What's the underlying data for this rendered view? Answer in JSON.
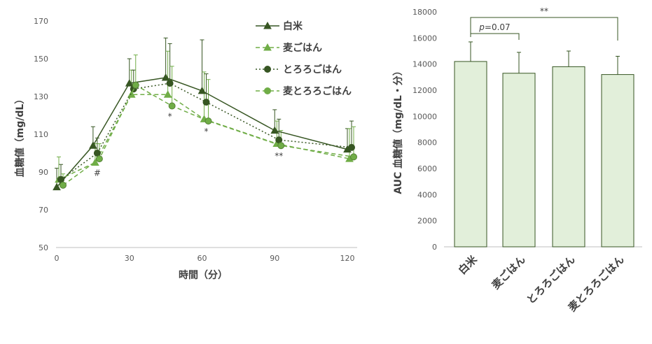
{
  "colors": {
    "dark_green": "#375623",
    "light_green": "#70AD47",
    "bar_fill": "#E2EFDA",
    "bar_stroke": "#375623",
    "axis": "#BFBFBF",
    "text": "#404040"
  },
  "chart_data": [
    {
      "type": "line",
      "xlabel": "時間（分）",
      "ylabel": "血糖値（mg/dL）",
      "xlim": [
        0,
        120
      ],
      "ylim": [
        50,
        170
      ],
      "x_ticks": [
        "0",
        "30",
        "60",
        "90",
        "120"
      ],
      "y_ticks": [
        "50",
        "70",
        "90",
        "110",
        "130",
        "150",
        "170"
      ],
      "grid": false,
      "legend_position": "top-center",
      "series": [
        {
          "name": "白米",
          "marker": "triangle",
          "line_style": "solid",
          "color": "dark_green",
          "x": [
            0,
            15,
            30,
            45,
            60,
            90,
            120
          ],
          "y": [
            82,
            104,
            137,
            140,
            133,
            112,
            102
          ],
          "err": [
            10,
            10,
            13,
            21,
            27,
            11,
            11
          ]
        },
        {
          "name": "麦ごはん",
          "marker": "triangle",
          "line_style": "dashed",
          "color": "light_green",
          "x": [
            0,
            15,
            30,
            45,
            60,
            90,
            120
          ],
          "y": [
            86,
            95,
            131,
            131,
            118,
            105,
            97
          ],
          "err": [
            12,
            10,
            13,
            23,
            25,
            12,
            16
          ]
        },
        {
          "name": "とろろごはん",
          "marker": "circle",
          "line_style": "dotted",
          "color": "dark_green",
          "x": [
            0,
            15,
            30,
            45,
            60,
            90,
            120
          ],
          "y": [
            86,
            100,
            134,
            137,
            127,
            107,
            103
          ],
          "err": [
            8,
            8,
            10,
            21,
            15,
            11,
            14
          ]
        },
        {
          "name": "麦とろろごはん",
          "marker": "circle",
          "line_style": "dashed",
          "color": "light_green",
          "x": [
            0,
            15,
            30,
            45,
            60,
            90,
            120
          ],
          "y": [
            83,
            97,
            136,
            125,
            117,
            104,
            98
          ],
          "err": [
            6,
            8,
            16,
            21,
            22,
            8,
            16
          ]
        }
      ],
      "annotations": [
        {
          "x": 15,
          "text": "#"
        },
        {
          "x": 45,
          "text": "*"
        },
        {
          "x": 60,
          "text": "*"
        },
        {
          "x": 90,
          "text": "**"
        }
      ]
    },
    {
      "type": "bar",
      "ylabel": "AUC 血糖値（mg/dL・分）",
      "ylim": [
        0,
        18000
      ],
      "y_ticks": [
        "0",
        "2000",
        "4000",
        "6000",
        "8000",
        "10000",
        "12000",
        "14000",
        "16000",
        "18000"
      ],
      "grid": false,
      "categories": [
        "白米",
        "麦ごはん",
        "とろろごはん",
        "麦とろろごはん"
      ],
      "values": [
        14200,
        13300,
        13800,
        13200
      ],
      "err": [
        1500,
        1600,
        1200,
        1400
      ],
      "significance": [
        {
          "from": 0,
          "to": 1,
          "label_italic": "p",
          "label_rest": "=0.07"
        },
        {
          "from": 0,
          "to": 3,
          "label_italic": "",
          "label_rest": "**"
        }
      ]
    }
  ]
}
